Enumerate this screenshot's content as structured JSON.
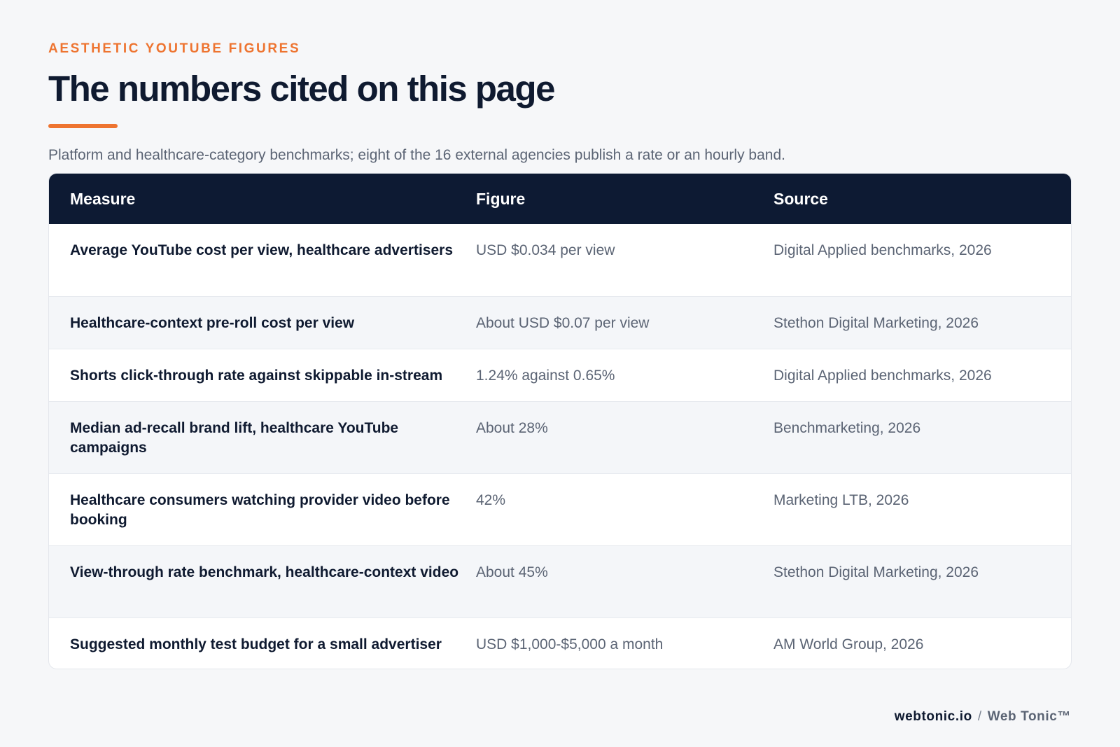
{
  "header": {
    "eyebrow": "AESTHETIC YOUTUBE FIGURES",
    "title": "The numbers cited on this page",
    "subtitle": "Platform and healthcare-category benchmarks; eight of the 16 external agencies publish a rate or an hourly band."
  },
  "table": {
    "columns": [
      "Measure",
      "Figure",
      "Source"
    ],
    "rows": [
      {
        "measure": "Average YouTube cost per view, healthcare advertisers",
        "figure": "USD $0.034 per view",
        "source": "Digital Applied benchmarks, 2026"
      },
      {
        "measure": "Healthcare-context pre-roll cost per view",
        "figure": "About USD $0.07 per view",
        "source": "Stethon Digital Marketing, 2026"
      },
      {
        "measure": "Shorts click-through rate against skippable in-stream",
        "figure": "1.24% against 0.65%",
        "source": "Digital Applied benchmarks, 2026"
      },
      {
        "measure": "Median ad-recall brand lift, healthcare YouTube campaigns",
        "figure": "About 28%",
        "source": "Benchmarketing, 2026"
      },
      {
        "measure": "Healthcare consumers watching provider video before booking",
        "figure": "42%",
        "source": "Marketing LTB, 2026"
      },
      {
        "measure": "View-through rate benchmark, healthcare-context video",
        "figure": "About 45%",
        "source": "Stethon Digital Marketing, 2026"
      },
      {
        "measure": "Suggested monthly test budget for a small advertiser",
        "figure": "USD $1,000-$5,000 a month",
        "source": "AM World Group, 2026"
      }
    ]
  },
  "footer": {
    "domain": "webtonic.io",
    "separator": "/",
    "brand": "Web Tonic™"
  },
  "colors": {
    "accent": "#ee7430",
    "header_bg": "#0d1a33",
    "page_bg": "#f6f7f9"
  }
}
